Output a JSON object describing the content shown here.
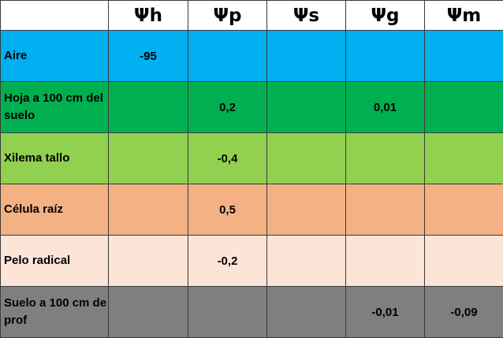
{
  "header": [
    "",
    "Ψh",
    "Ψp",
    "Ψs",
    "Ψg",
    "Ψm"
  ],
  "colors": {
    "row_0": "#00b0f0",
    "row_1": "#00b050",
    "row_2": "#92d050",
    "row_3": "#f4b183",
    "row_4": "#fce4d6",
    "row_5": "#7f7f7f"
  },
  "rows": [
    {
      "label": "Aire",
      "values": [
        "-95",
        "",
        "",
        "",
        ""
      ]
    },
    {
      "label": "Hoja a 100 cm del suelo",
      "values": [
        "",
        "0,2",
        "",
        "0,01",
        ""
      ]
    },
    {
      "label": "Xilema tallo",
      "values": [
        "",
        "-0,4",
        "",
        "",
        ""
      ]
    },
    {
      "label": "Célula raíz",
      "values": [
        "",
        "0,5",
        "",
        "",
        ""
      ]
    },
    {
      "label": "Pelo radical",
      "values": [
        "",
        "-0,2",
        "",
        "",
        ""
      ]
    },
    {
      "label": "Suelo a 100 cm de prof",
      "values": [
        "",
        "",
        "",
        "-0,01",
        "-0,09"
      ]
    }
  ]
}
